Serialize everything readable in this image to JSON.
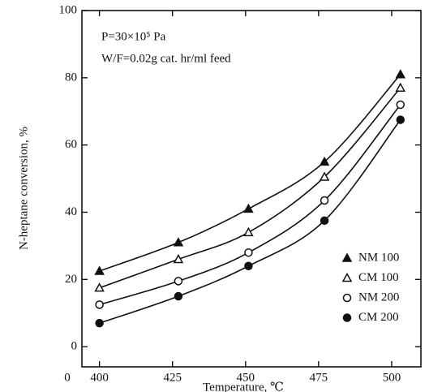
{
  "chart_data": {
    "type": "scatter",
    "xlabel": "Temperature, ℃",
    "ylabel": "N-heptane conversion, %",
    "annotations": [
      "P=30×10⁵ Pa",
      "W/F=0.02g cat. hr/ml feed"
    ],
    "x_origin_label": "0",
    "x": [
      400,
      427,
      451,
      477,
      503
    ],
    "series": [
      {
        "name": "NM 100",
        "marker": "triangle",
        "filled": true,
        "color": "#111111",
        "values": [
          22.5,
          31,
          41,
          55,
          81
        ]
      },
      {
        "name": "CM 100",
        "marker": "triangle",
        "filled": false,
        "color": "#111111",
        "values": [
          17.5,
          26,
          34,
          50.5,
          77
        ]
      },
      {
        "name": "NM 200",
        "marker": "circle",
        "filled": false,
        "color": "#111111",
        "values": [
          12.5,
          19.5,
          28,
          43.5,
          72
        ]
      },
      {
        "name": "CM 200",
        "marker": "circle",
        "filled": true,
        "color": "#111111",
        "values": [
          7,
          15,
          24,
          37.5,
          67.5
        ]
      }
    ],
    "xlim": [
      394,
      510
    ],
    "xticks": [
      400,
      425,
      450,
      475,
      500
    ],
    "ylim": [
      -6,
      100
    ],
    "yticks": [
      0,
      20,
      40,
      60,
      80,
      100
    ],
    "legend": "lower right",
    "grid": false
  }
}
